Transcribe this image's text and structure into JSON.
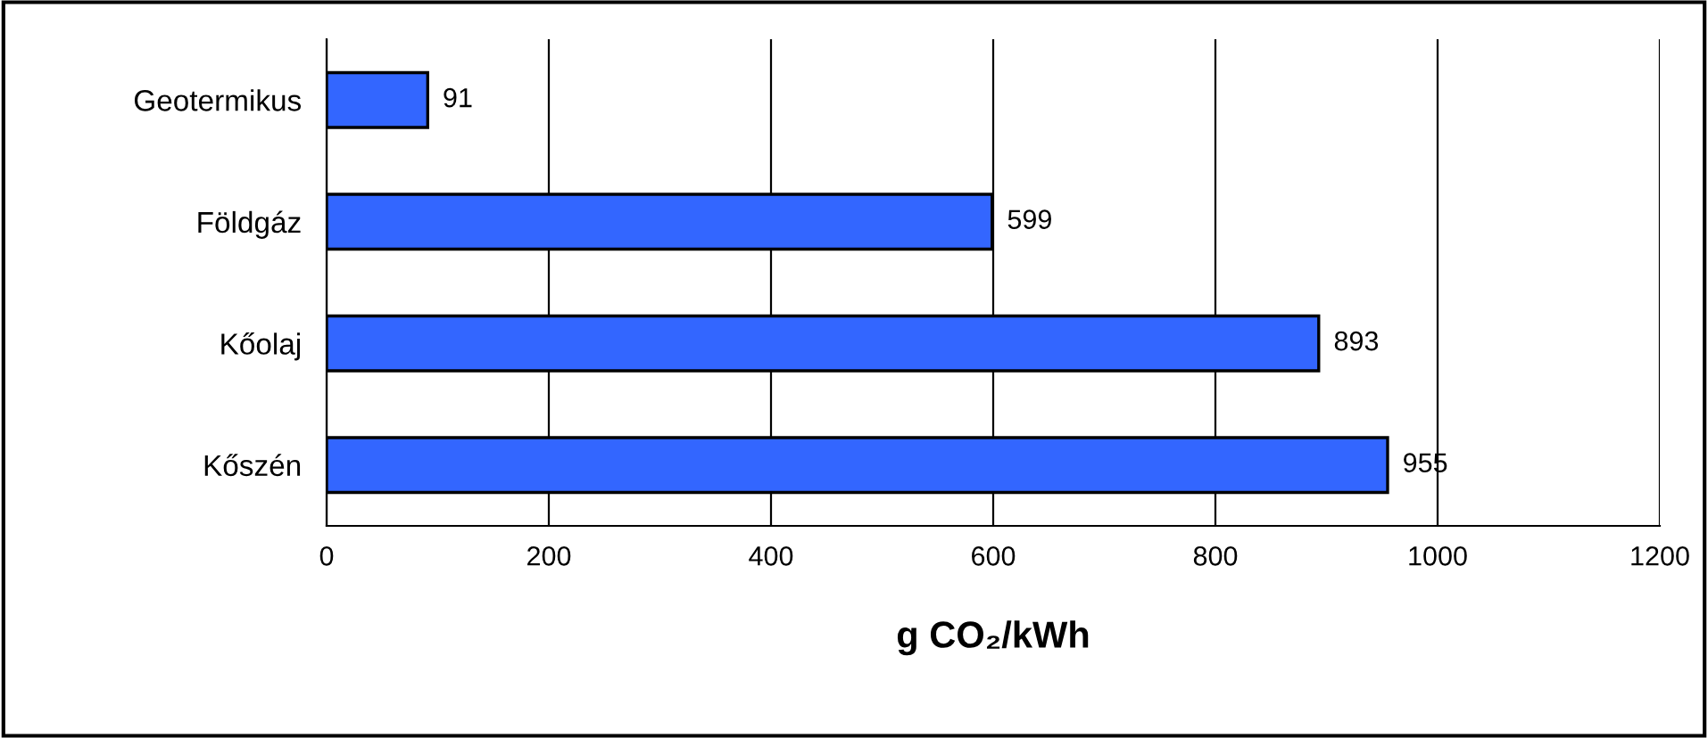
{
  "chart_data": {
    "type": "bar",
    "orientation": "horizontal",
    "categories": [
      "Geotermikus",
      "Földgáz",
      "Kőolaj",
      "Kőszén"
    ],
    "values": [
      91,
      599,
      893,
      955
    ],
    "color": "#3366ff",
    "data_labels": true,
    "xlabel": "g CO₂/kWh",
    "xlim": [
      0,
      1200
    ],
    "xticks": [
      0,
      200,
      400,
      600,
      800,
      1000,
      1200
    ],
    "grid": "x"
  }
}
